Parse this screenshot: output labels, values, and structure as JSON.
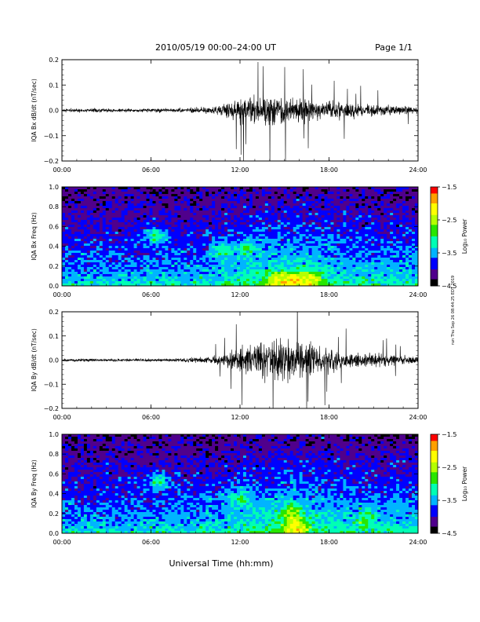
{
  "header": {
    "title": "2010/05/19  00:00–24:00 UT",
    "page": "Page 1/1"
  },
  "side_stamp": "run Thu Sep 26 08:44:25 EDT 2019",
  "xlabel": "Universal Time (hh:mm)",
  "x_ticks": [
    "00:00",
    "06:00",
    "12:00",
    "18:00",
    "24:00"
  ],
  "chart_data": [
    {
      "type": "line",
      "ylabel": "IQA Bx dB/dt (nT/sec)",
      "xlim": [
        0,
        24
      ],
      "ylim": [
        -0.2,
        0.2
      ],
      "y_ticks": [
        "0.2",
        "0.1",
        "0.0",
        "−0.1",
        "−0.2"
      ],
      "series": [
        {
          "color": "#000000",
          "envelope_x_hours": [
            0,
            3,
            6,
            8,
            9.5,
            10.5,
            11.5,
            12,
            13,
            14,
            15,
            16,
            17,
            18,
            19,
            20,
            21,
            22,
            23,
            24
          ],
          "envelope_amplitude": [
            0.013,
            0.012,
            0.012,
            0.013,
            0.02,
            0.035,
            0.06,
            0.085,
            0.1,
            0.11,
            0.1,
            0.08,
            0.07,
            0.06,
            0.05,
            0.045,
            0.04,
            0.035,
            0.03,
            0.028
          ]
        }
      ]
    },
    {
      "type": "heatmap",
      "ylabel": "IQA Bx Freq (Hz)",
      "xlim": [
        0,
        24
      ],
      "ylim": [
        0,
        1.0
      ],
      "y_ticks": [
        "1.0",
        "0.8",
        "0.6",
        "0.4",
        "0.2",
        "0.0"
      ],
      "colorbar": {
        "label": "Log₁₀ Power",
        "range": [
          -4.5,
          -1.5
        ],
        "ticks": [
          "−1.5",
          "−2.5",
          "−3.5",
          "−4.5"
        ],
        "colors": [
          "#000000",
          "#50008c",
          "#0000ff",
          "#00b4ff",
          "#00ffb4",
          "#28e600",
          "#b4ff00",
          "#ffff00",
          "#ffa000",
          "#ff0000"
        ]
      },
      "features": [
        {
          "t_hours": 6.3,
          "f_hz": 0.5,
          "level": -2.9
        },
        {
          "t_hours": 10.8,
          "f_hz": 0.35,
          "level": -2.9
        },
        {
          "t_hours": 12.5,
          "f_hz": 0.38,
          "level": -2.8
        },
        {
          "t_hours": 14.5,
          "f_hz": 0.05,
          "level": -2.0
        },
        {
          "t_hours": 15.7,
          "f_hz": 0.05,
          "level": -1.8
        },
        {
          "t_hours": 16.8,
          "f_hz": 0.05,
          "level": -2.0
        }
      ]
    },
    {
      "type": "line",
      "ylabel": "IQA By dB/dt (nT/sec)",
      "xlim": [
        0,
        24
      ],
      "ylim": [
        -0.2,
        0.2
      ],
      "y_ticks": [
        "0.2",
        "0.1",
        "0.0",
        "−0.1",
        "−0.2"
      ],
      "series": [
        {
          "color": "#000000",
          "envelope_x_hours": [
            0,
            3,
            6,
            8,
            9.5,
            10.5,
            11.5,
            12,
            13,
            14,
            15,
            16,
            17,
            18,
            19,
            20,
            21,
            22,
            23,
            24
          ],
          "envelope_amplitude": [
            0.01,
            0.01,
            0.01,
            0.012,
            0.02,
            0.035,
            0.06,
            0.08,
            0.11,
            0.13,
            0.14,
            0.13,
            0.11,
            0.08,
            0.06,
            0.05,
            0.045,
            0.04,
            0.035,
            0.03
          ]
        }
      ]
    },
    {
      "type": "heatmap",
      "ylabel": "IQA By Freq (Hz)",
      "xlim": [
        0,
        24
      ],
      "ylim": [
        0,
        1.0
      ],
      "y_ticks": [
        "1.0",
        "0.8",
        "0.6",
        "0.4",
        "0.2",
        "0.0"
      ],
      "colorbar": {
        "label": "Log₁₀ Power",
        "range": [
          -4.5,
          -1.5
        ],
        "ticks": [
          "−1.5",
          "−2.5",
          "−3.5",
          "−4.5"
        ],
        "colors": [
          "#000000",
          "#50008c",
          "#0000ff",
          "#00b4ff",
          "#00ffb4",
          "#28e600",
          "#b4ff00",
          "#ffff00",
          "#ffa000",
          "#ff0000"
        ]
      },
      "features": [
        {
          "t_hours": 6.5,
          "f_hz": 0.52,
          "level": -2.9
        },
        {
          "t_hours": 12.0,
          "f_hz": 0.35,
          "level": -2.8
        },
        {
          "t_hours": 15.5,
          "f_hz": 0.2,
          "level": -2.3
        },
        {
          "t_hours": 15.7,
          "f_hz": 0.05,
          "level": -1.8
        },
        {
          "t_hours": 20.5,
          "f_hz": 0.15,
          "level": -2.7
        }
      ]
    }
  ]
}
